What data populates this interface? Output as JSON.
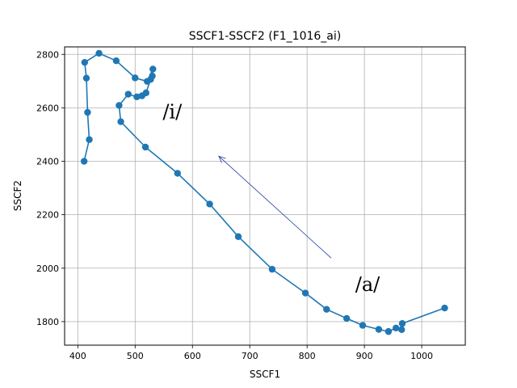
{
  "chart_data": {
    "type": "line",
    "title": "SSCF1-SSCF2 (F1_1016_ai)",
    "xlabel": "SSCF1",
    "ylabel": "SSCF2",
    "xlim": [
      377,
      1076
    ],
    "ylim": [
      1712,
      2828
    ],
    "xticks": [
      400,
      500,
      600,
      700,
      800,
      900,
      1000
    ],
    "yticks": [
      1800,
      2000,
      2200,
      2400,
      2600,
      2800
    ],
    "x_tick_labels": [
      "400",
      "500",
      "600",
      "700",
      "800",
      "900",
      "1000"
    ],
    "y_tick_labels": [
      "1800",
      "2000",
      "2200",
      "2400",
      "2600",
      "2800"
    ],
    "grid": true,
    "color": "#1f77b4",
    "series": [
      {
        "x": [
          1040,
          966,
          965,
          955,
          942,
          925,
          897,
          869,
          834,
          797,
          739,
          680,
          630,
          574,
          518,
          475,
          472,
          488,
          503,
          512,
          519,
          527,
          530,
          531,
          521,
          500,
          467,
          437,
          412,
          415,
          417,
          420,
          411
        ],
        "y": [
          1851,
          1793,
          1770,
          1776,
          1763,
          1771,
          1786,
          1812,
          1846,
          1907,
          1996,
          2118,
          2240,
          2355,
          2453,
          2548,
          2609,
          2651,
          2641,
          2645,
          2656,
          2706,
          2719,
          2745,
          2699,
          2712,
          2776,
          2804,
          2770,
          2711,
          2583,
          2481,
          2400
        ]
      }
    ],
    "annotations": [
      {
        "text": "/i/",
        "x": 548,
        "y": 2560
      },
      {
        "text": "/a/",
        "x": 884,
        "y": 1915
      }
    ],
    "arrow": {
      "from": [
        842,
        2038
      ],
      "to": [
        646,
        2419
      ],
      "color": "#1f3ca0"
    }
  }
}
